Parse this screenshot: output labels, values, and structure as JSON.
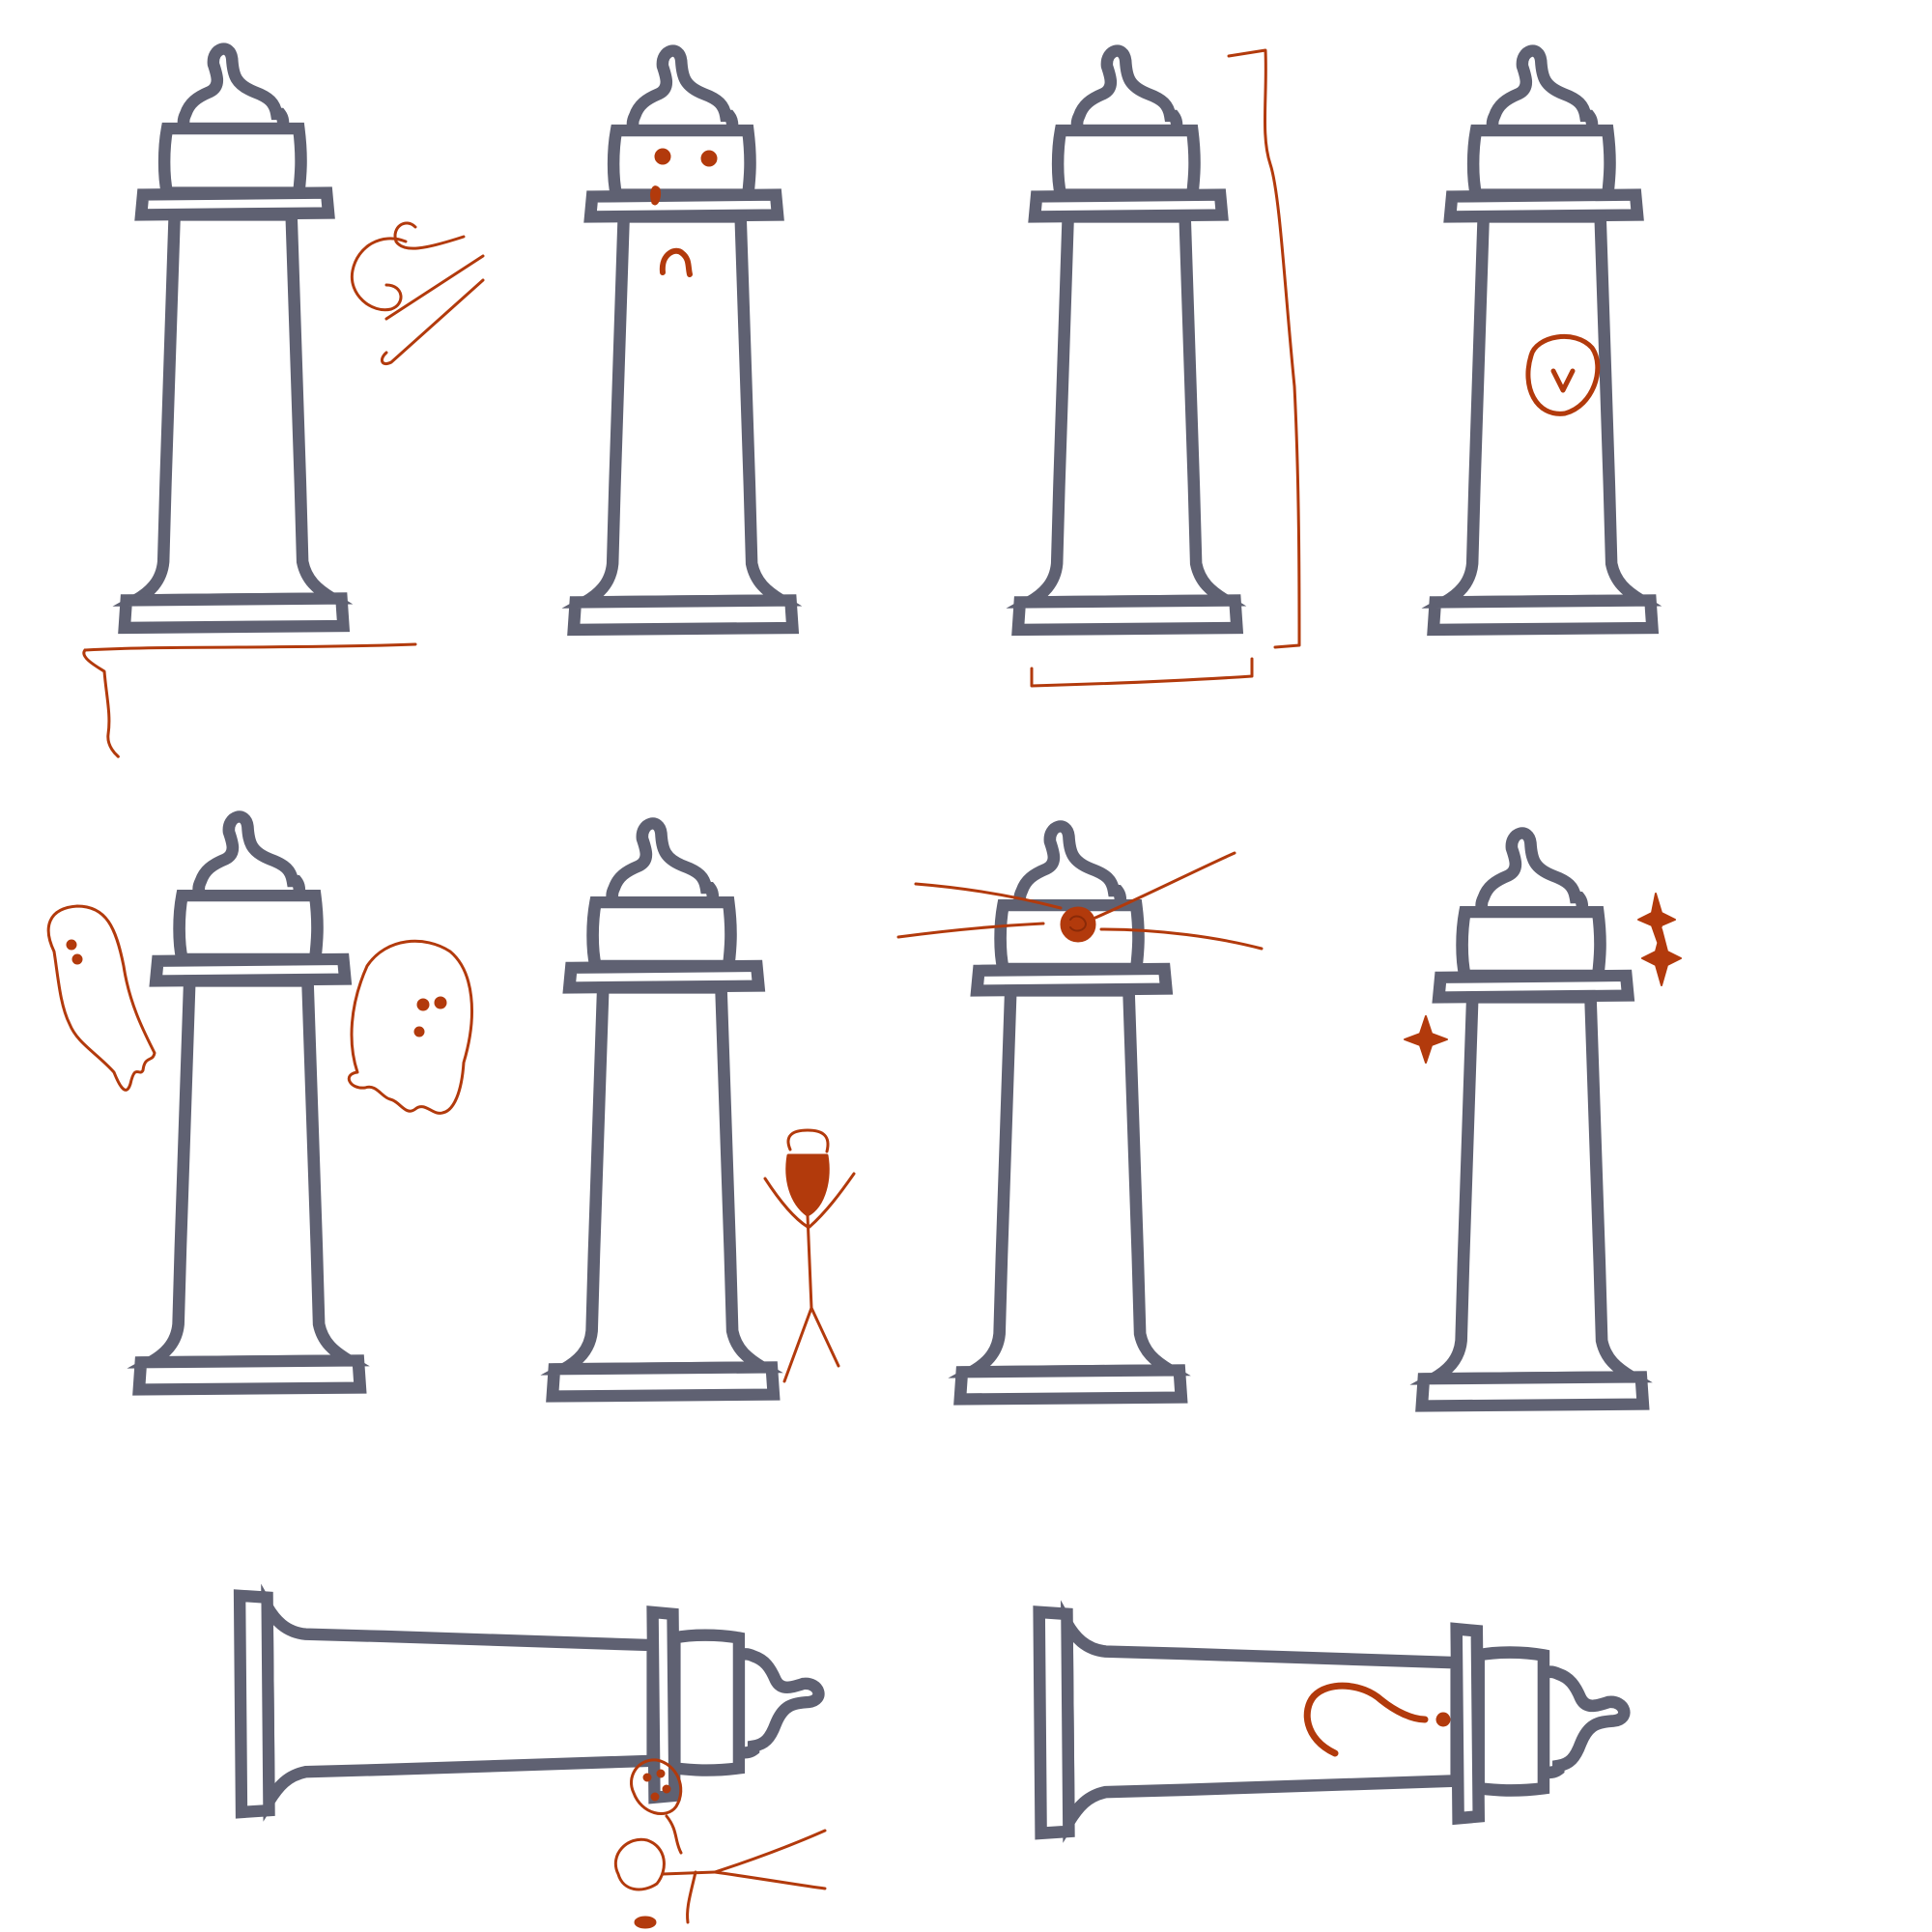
{
  "colors": {
    "outline": "#5f6172",
    "doodle": "#b23a0c",
    "background": "#ffffff"
  },
  "panels": [
    {
      "id": "windy-cliff",
      "tower": "upright",
      "doodles": [
        "wind-swirls",
        "cliff-edge"
      ]
    },
    {
      "id": "sad-face",
      "tower": "upright",
      "doodles": [
        "eyes",
        "tear",
        "frown"
      ]
    },
    {
      "id": "measured",
      "tower": "upright",
      "doodles": [
        "height-bracket",
        "width-bracket"
      ]
    },
    {
      "id": "clock-badge",
      "tower": "upright",
      "doodles": [
        "circle-badge"
      ]
    },
    {
      "id": "haunted",
      "tower": "upright",
      "doodles": [
        "ghost-left",
        "ghost-right"
      ]
    },
    {
      "id": "keeper",
      "tower": "upright",
      "doodles": [
        "bearded-stick-figure"
      ]
    },
    {
      "id": "beacon",
      "tower": "upright",
      "doodles": [
        "light-source",
        "light-rays"
      ]
    },
    {
      "id": "sparkling",
      "tower": "upright",
      "doodles": [
        "sparkles"
      ]
    },
    {
      "id": "fallen-crushed",
      "tower": "fallen",
      "doodles": [
        "squashed-stick-figure"
      ]
    },
    {
      "id": "fallen-confused",
      "tower": "fallen",
      "doodles": [
        "question-mark"
      ]
    }
  ]
}
